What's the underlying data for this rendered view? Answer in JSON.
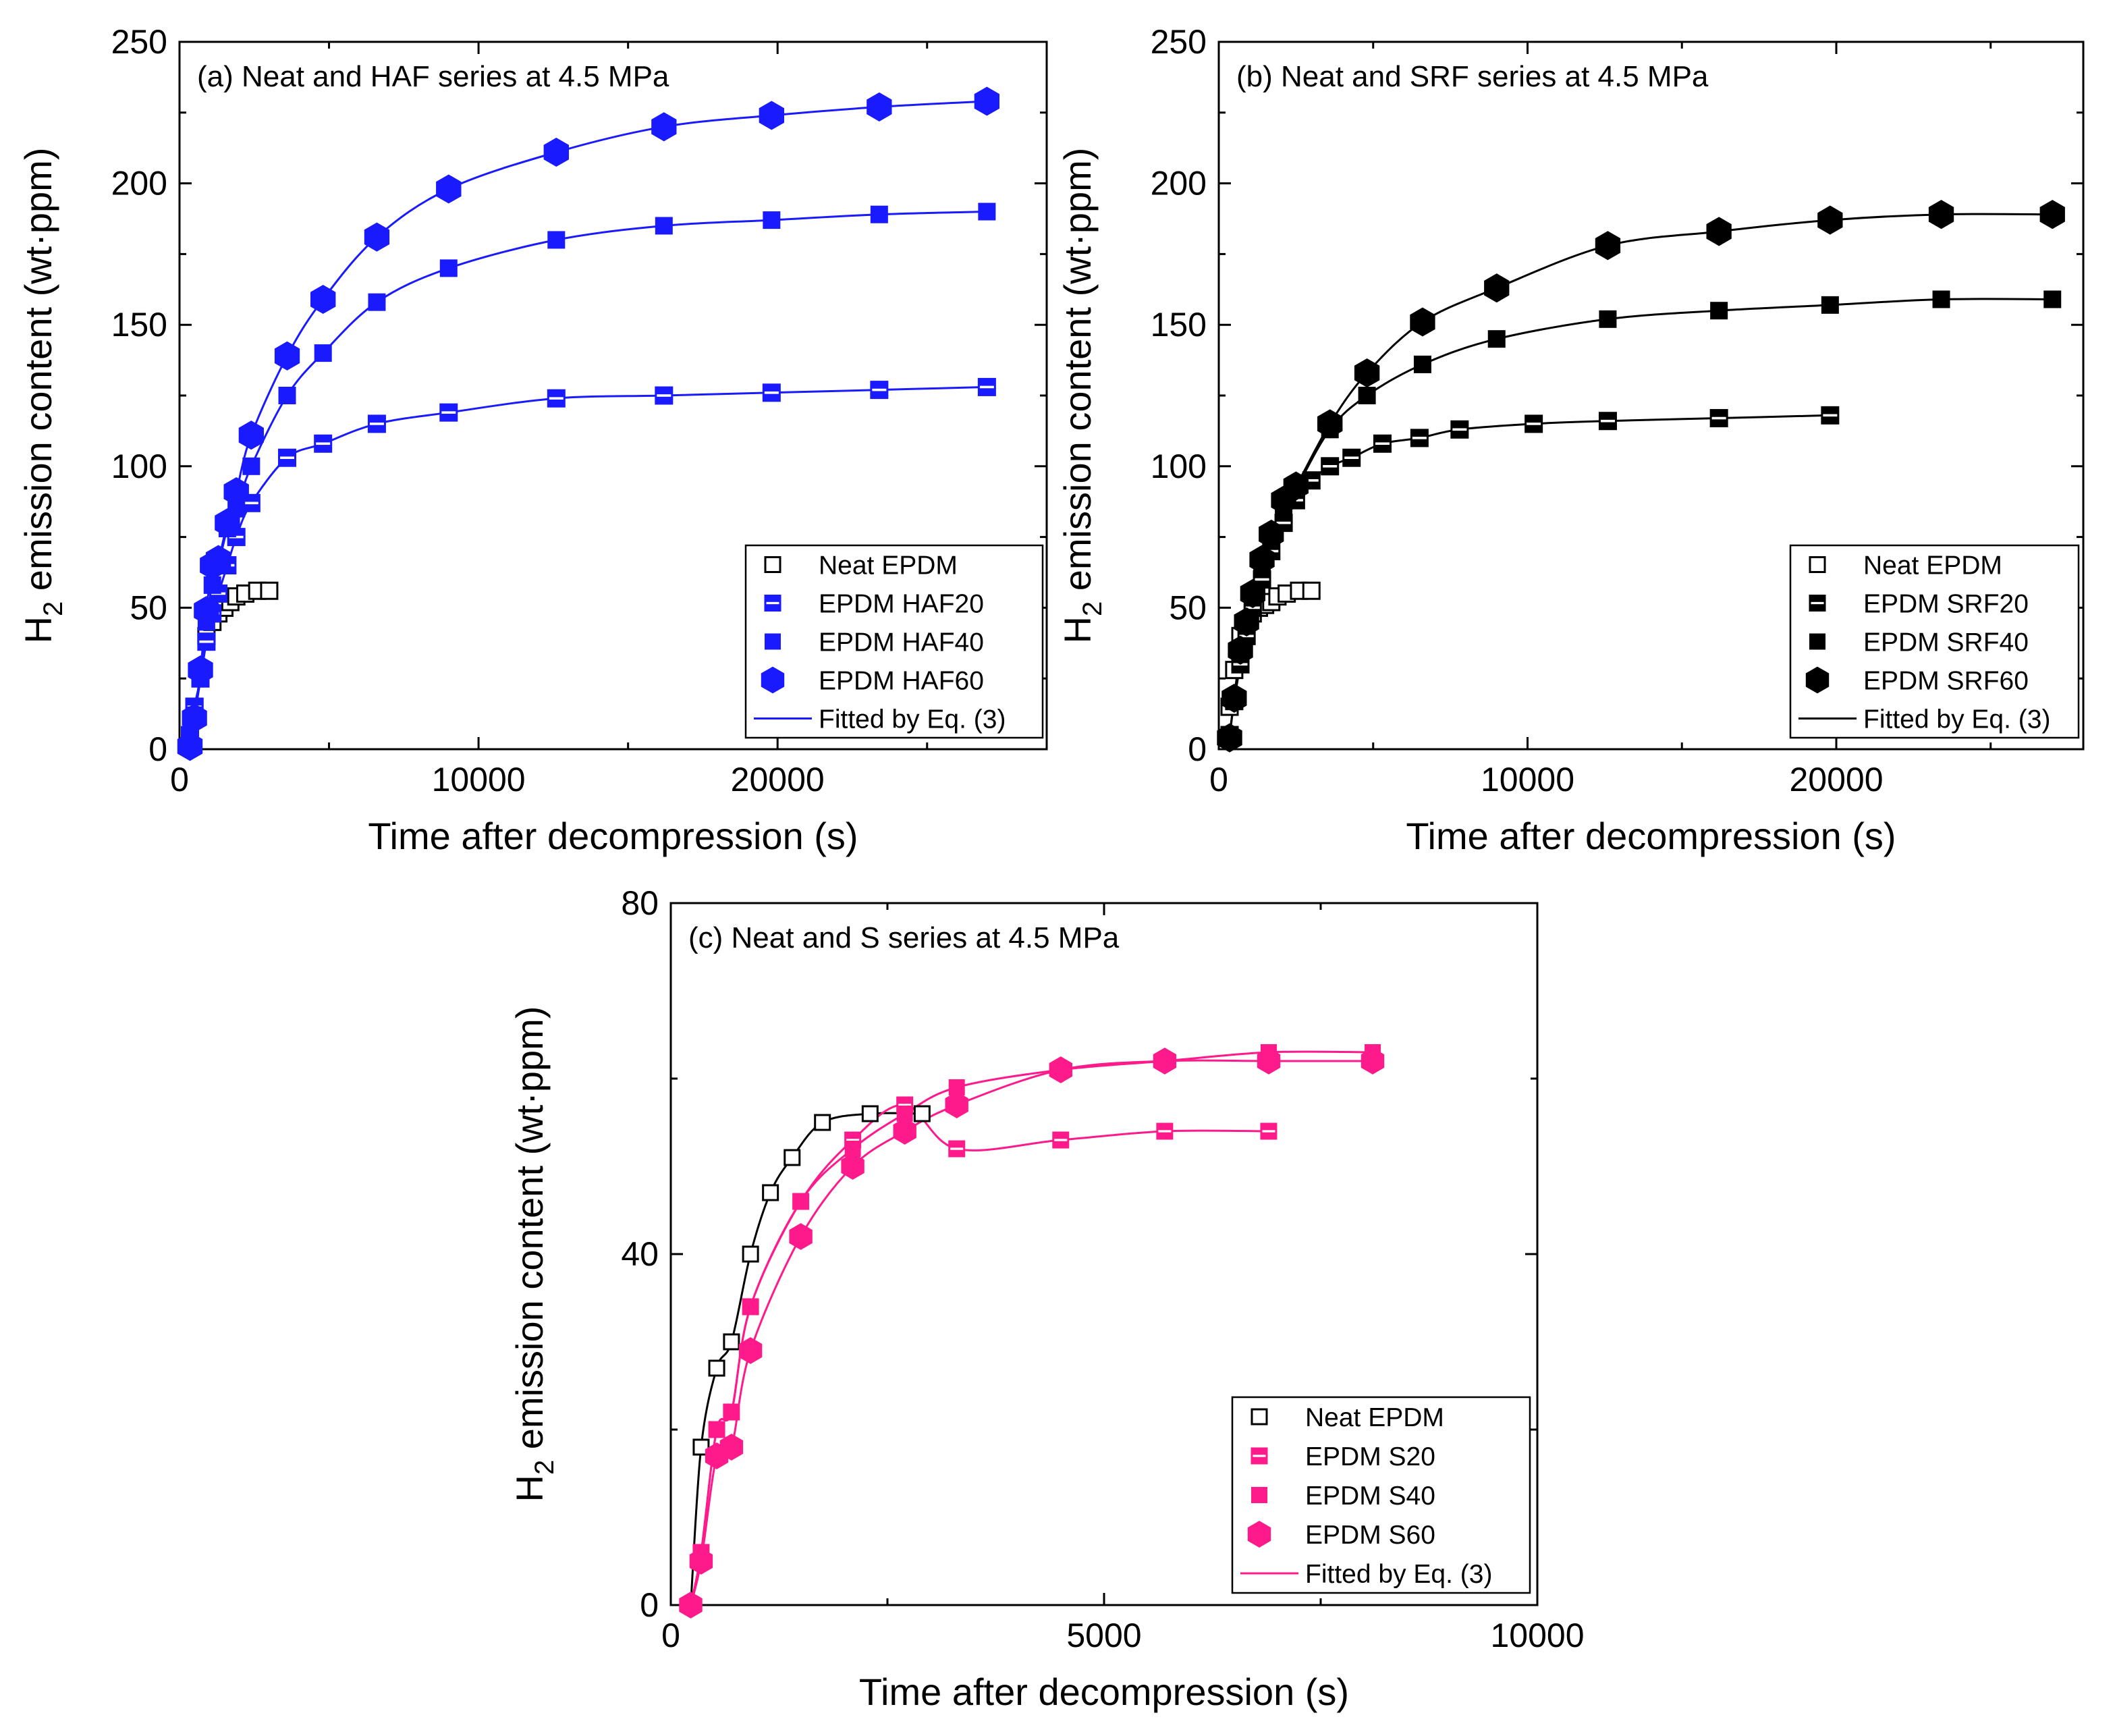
{
  "figure": {
    "panels": [
      {
        "id": "a",
        "title": "(a) Neat and HAF series at 4.5 MPa",
        "xlabel": "Time after decompression (s)",
        "ylabel_main": "H",
        "ylabel_sub": "2",
        "ylabel_rest": " emission content (wt·ppm)"
      },
      {
        "id": "b",
        "title": "(b) Neat and SRF series at 4.5 MPa",
        "xlabel": "Time after decompression (s)",
        "ylabel_main": "H",
        "ylabel_sub": "2",
        "ylabel_rest": " emission content (wt·ppm)"
      },
      {
        "id": "c",
        "title": "(c) Neat and S series at 4.5 MPa",
        "xlabel": "Time after decompression (s)",
        "ylabel_main": "H",
        "ylabel_sub": "2",
        "ylabel_rest": " emission content (wt·ppm)"
      }
    ]
  },
  "chart_data": [
    {
      "type": "scatter",
      "title": "(a) Neat and HAF series at 4.5 MPa",
      "xlabel": "Time after decompression (s)",
      "ylabel": "H2 emission content (wt·ppm)",
      "xlim": [
        0,
        29000
      ],
      "ylim": [
        0,
        250
      ],
      "xticks": [
        0,
        10000,
        20000
      ],
      "yticks": [
        0,
        50,
        100,
        150,
        200,
        250
      ],
      "xtick_labels": [
        "0",
        "10000",
        "20000"
      ],
      "ytick_labels": [
        "0",
        "50",
        "100",
        "150",
        "200",
        "250"
      ],
      "legend_position": "bottom-right",
      "fit_label": "Fitted by Eq. (3)",
      "fit_color": "#1a1aff",
      "series": [
        {
          "name": "Neat EPDM",
          "marker": "square-open",
          "color": "#000000",
          "fit": false,
          "x": [
            350,
            500,
            700,
            900,
            1100,
            1300,
            1500,
            1700,
            1900,
            2200,
            2600,
            3000
          ],
          "y": [
            5,
            15,
            28,
            40,
            45,
            48,
            50,
            52,
            54,
            55,
            56,
            56
          ]
        },
        {
          "name": "EPDM HAF20",
          "marker": "square-half",
          "color": "#1a1aff",
          "fit": true,
          "x": [
            350,
            500,
            700,
            900,
            1100,
            1300,
            1600,
            1900,
            2400,
            3600,
            4800,
            6600,
            9000,
            12600,
            16200,
            19800,
            23400,
            27000
          ],
          "y": [
            5,
            15,
            25,
            38,
            48,
            55,
            65,
            75,
            87,
            103,
            108,
            115,
            119,
            124,
            125,
            126,
            127,
            128
          ]
        },
        {
          "name": "EPDM HAF40",
          "marker": "square-filled",
          "color": "#1a1aff",
          "fit": true,
          "x": [
            350,
            500,
            700,
            900,
            1100,
            1300,
            1600,
            1900,
            2400,
            3600,
            4800,
            6600,
            9000,
            12600,
            16200,
            19800,
            23400,
            27000
          ],
          "y": [
            3,
            12,
            25,
            45,
            58,
            65,
            78,
            85,
            100,
            125,
            140,
            158,
            170,
            180,
            185,
            187,
            189,
            190
          ]
        },
        {
          "name": "EPDM HAF60",
          "marker": "hexagon",
          "color": "#1a1aff",
          "fit": true,
          "x": [
            350,
            500,
            700,
            900,
            1100,
            1300,
            1600,
            1900,
            2400,
            3600,
            4800,
            6600,
            9000,
            12600,
            16200,
            19800,
            23400,
            27000
          ],
          "y": [
            1,
            11,
            28,
            49,
            65,
            67,
            80,
            91,
            111,
            139,
            159,
            181,
            198,
            211,
            220,
            224,
            227,
            229
          ]
        }
      ]
    },
    {
      "type": "scatter",
      "title": "(b) Neat and SRF series at 4.5 MPa",
      "xlabel": "Time after decompression (s)",
      "ylabel": "H2 emission content (wt·ppm)",
      "xlim": [
        0,
        28000
      ],
      "ylim": [
        0,
        250
      ],
      "xticks": [
        0,
        10000,
        20000
      ],
      "yticks": [
        0,
        50,
        100,
        150,
        200,
        250
      ],
      "xtick_labels": [
        "0",
        "10000",
        "20000"
      ],
      "ytick_labels": [
        "0",
        "50",
        "100",
        "150",
        "200",
        "250"
      ],
      "legend_position": "bottom-right",
      "fit_label": "Fitted by Eq. (3)",
      "fit_color": "#000000",
      "series": [
        {
          "name": "Neat EPDM",
          "marker": "square-open",
          "color": "#000000",
          "fit": false,
          "x": [
            350,
            500,
            700,
            900,
            1100,
            1300,
            1500,
            1700,
            1900,
            2200,
            2600,
            3000
          ],
          "y": [
            15,
            28,
            40,
            45,
            48,
            50,
            51,
            52,
            54,
            55,
            56,
            56
          ]
        },
        {
          "name": "EPDM SRF20",
          "marker": "square-half",
          "color": "#000000",
          "fit": true,
          "x": [
            350,
            500,
            700,
            900,
            1100,
            1400,
            1700,
            2100,
            2500,
            3000,
            3600,
            4300,
            5300,
            6500,
            7800,
            10200,
            12600,
            16200,
            19800
          ],
          "y": [
            5,
            17,
            30,
            40,
            50,
            60,
            70,
            80,
            88,
            95,
            100,
            103,
            108,
            110,
            113,
            115,
            116,
            117,
            118
          ]
        },
        {
          "name": "EPDM SRF40",
          "marker": "square-filled",
          "color": "#000000",
          "fit": true,
          "x": [
            350,
            500,
            700,
            900,
            1100,
            1400,
            1700,
            2100,
            2500,
            3600,
            4800,
            6600,
            9000,
            12600,
            16200,
            19800,
            23400,
            27000
          ],
          "y": [
            5,
            18,
            35,
            45,
            55,
            65,
            75,
            85,
            92,
            113,
            125,
            136,
            145,
            152,
            155,
            157,
            159,
            159
          ]
        },
        {
          "name": "EPDM SRF60",
          "marker": "hexagon",
          "color": "#000000",
          "fit": true,
          "x": [
            350,
            500,
            700,
            900,
            1100,
            1400,
            1700,
            2100,
            2500,
            3600,
            4800,
            6600,
            9000,
            12600,
            16200,
            19800,
            23400,
            27000
          ],
          "y": [
            4,
            18,
            35,
            45,
            55,
            67,
            76,
            88,
            93,
            115,
            133,
            151,
            163,
            178,
            183,
            187,
            189,
            189
          ]
        }
      ]
    },
    {
      "type": "scatter",
      "title": "(c) Neat and S series at 4.5 MPa",
      "xlabel": "Time after decompression (s)",
      "ylabel": "H2 emission content (wt·ppm)",
      "xlim": [
        0,
        10000
      ],
      "ylim": [
        0,
        80
      ],
      "xticks": [
        0,
        5000,
        10000
      ],
      "yticks": [
        0,
        40,
        80
      ],
      "xtick_labels": [
        "0",
        "5000",
        "10000"
      ],
      "ytick_labels": [
        "0",
        "40",
        "80"
      ],
      "legend_position": "bottom-right",
      "fit_label": "Fitted by Eq. (3)",
      "fit_color": "#ff1a8c",
      "series": [
        {
          "name": "Neat EPDM",
          "marker": "square-open",
          "color": "#000000",
          "fit": true,
          "fit_color": "#000000",
          "x": [
            230,
            350,
            530,
            700,
            920,
            1150,
            1400,
            1750,
            2300,
            2900
          ],
          "y": [
            0,
            18,
            27,
            30,
            40,
            47,
            51,
            55,
            56,
            56
          ]
        },
        {
          "name": "EPDM S20",
          "marker": "square-half",
          "color": "#ff1a8c",
          "fit": true,
          "x": [
            230,
            350,
            530,
            700,
            920,
            1500,
            2100,
            2700,
            3300,
            4500,
            5700,
            6900
          ],
          "y": [
            0,
            6,
            20,
            22,
            34,
            46,
            53,
            57,
            52,
            53,
            54,
            54
          ]
        },
        {
          "name": "EPDM S40",
          "marker": "square-filled",
          "color": "#ff1a8c",
          "fit": true,
          "x": [
            230,
            350,
            530,
            700,
            920,
            1500,
            2100,
            2700,
            3300,
            4500,
            5700,
            6900,
            8100
          ],
          "y": [
            0,
            6,
            20,
            22,
            34,
            46,
            52,
            56,
            59,
            61,
            62,
            63,
            63
          ]
        },
        {
          "name": "EPDM S60",
          "marker": "hexagon",
          "color": "#ff1a8c",
          "fit": true,
          "x": [
            230,
            350,
            530,
            700,
            920,
            1500,
            2100,
            2700,
            3300,
            4500,
            5700,
            6900,
            8100
          ],
          "y": [
            0,
            5,
            17,
            18,
            29,
            42,
            50,
            54,
            57,
            61,
            62,
            62,
            62
          ]
        }
      ]
    }
  ]
}
